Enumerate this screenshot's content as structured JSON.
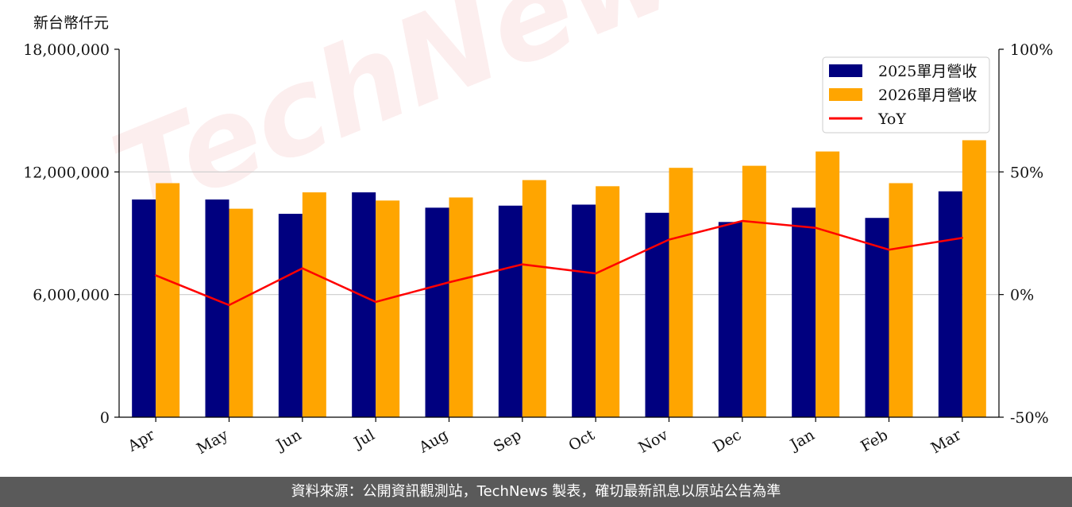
{
  "chart_data": {
    "type": "bar",
    "y_unit_label": "新台幣仟元",
    "categories": [
      "Apr",
      "May",
      "Jun",
      "Jul",
      "Aug",
      "Sep",
      "Oct",
      "Nov",
      "Dec",
      "Jan",
      "Feb",
      "Mar"
    ],
    "series": [
      {
        "name": "2025單月營收",
        "type": "bar",
        "axis": "left",
        "color": "#00007f",
        "values": [
          10650000,
          10650000,
          9950000,
          11000000,
          10250000,
          10350000,
          10400000,
          10000000,
          9550000,
          10250000,
          9750000,
          11050000
        ]
      },
      {
        "name": "2026單月營收",
        "type": "bar",
        "axis": "left",
        "color": "#ffa500",
        "values": [
          11450000,
          10200000,
          11000000,
          10600000,
          10750000,
          11600000,
          11300000,
          12200000,
          12300000,
          13000000,
          11450000,
          13550000
        ]
      },
      {
        "name": "YoY",
        "type": "line",
        "axis": "right",
        "color": "#ff0000",
        "values": [
          7.8,
          -4.3,
          10.7,
          -3.0,
          5.0,
          12.3,
          8.6,
          22.4,
          30.0,
          27.2,
          18.3,
          23.1
        ]
      }
    ],
    "left_axis": {
      "ylim": [
        0,
        18000000
      ],
      "ticks": [
        0,
        6000000,
        12000000,
        18000000
      ],
      "tick_labels": [
        "0",
        "6,000,000",
        "12,000,000",
        "18,000,000"
      ]
    },
    "right_axis": {
      "ylim": [
        -50,
        100
      ],
      "ticks": [
        -50,
        0,
        50,
        100
      ],
      "tick_labels": [
        "-50%",
        "0%",
        "50%",
        "100%"
      ]
    },
    "grid": "horizontal",
    "legend_position": "top-right",
    "watermark": "TechNews",
    "footer": "資料來源：公開資訊觀測站，TechNews 製表，確切最新訊息以原站公告為準"
  }
}
